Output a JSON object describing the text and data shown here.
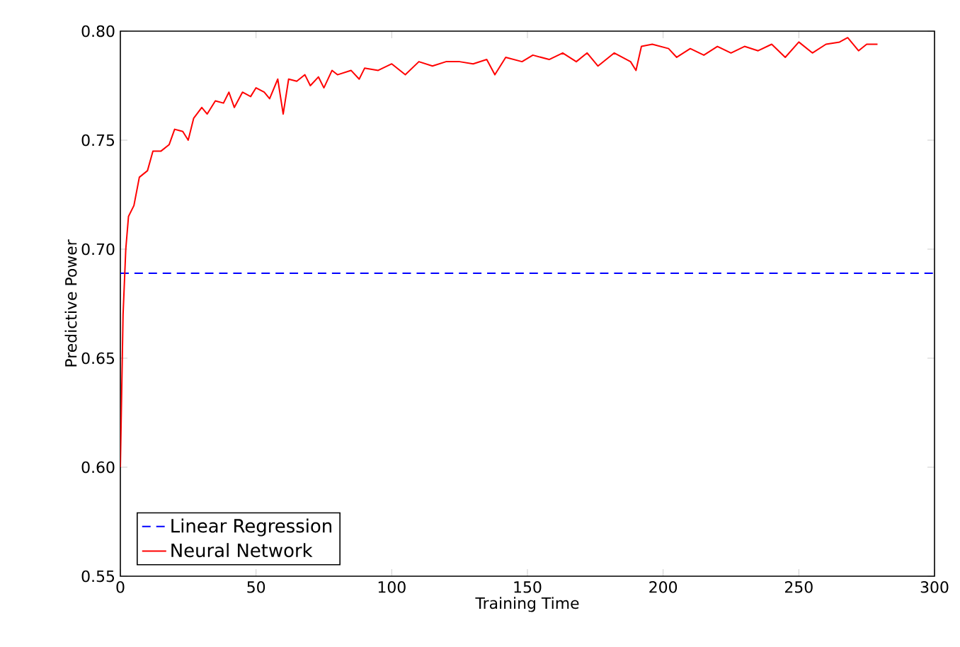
{
  "chart_data": {
    "type": "line",
    "xlabel": "Training Time",
    "ylabel": "Predictive Power",
    "xlim": [
      0,
      300
    ],
    "ylim": [
      0.55,
      0.8
    ],
    "xticks": [
      0,
      50,
      100,
      150,
      200,
      250,
      300
    ],
    "yticks": [
      "0.55",
      {
        "value": 0.6,
        "label": "0.60"
      },
      "0.65",
      {
        "value": 0.7,
        "label": "0.70"
      },
      "0.75",
      {
        "value": 0.8,
        "label": "0.80"
      }
    ],
    "grid": false,
    "legend": "bottom left",
    "series": [
      {
        "name": "Linear Regression",
        "color": "#0000ff",
        "line_style": "dashed",
        "x": [
          0,
          300
        ],
        "values": [
          0.689,
          0.689
        ]
      },
      {
        "name": "Neural Network",
        "color": "#ff0000",
        "line_style": "solid",
        "x": [
          0,
          1,
          2,
          3,
          5,
          7,
          10,
          12,
          15,
          18,
          20,
          23,
          25,
          27,
          30,
          32,
          35,
          38,
          40,
          42,
          45,
          48,
          50,
          53,
          55,
          58,
          60,
          62,
          65,
          68,
          70,
          73,
          75,
          78,
          80,
          85,
          88,
          90,
          95,
          100,
          105,
          110,
          115,
          120,
          125,
          130,
          135,
          138,
          142,
          148,
          152,
          158,
          163,
          168,
          172,
          176,
          182,
          188,
          190,
          192,
          196,
          202,
          205,
          210,
          215,
          220,
          225,
          230,
          235,
          240,
          245,
          250,
          255,
          260,
          265,
          268,
          272,
          275,
          279
        ],
        "values": [
          0.6,
          0.67,
          0.7,
          0.715,
          0.72,
          0.733,
          0.736,
          0.745,
          0.745,
          0.748,
          0.755,
          0.754,
          0.75,
          0.76,
          0.765,
          0.762,
          0.768,
          0.767,
          0.772,
          0.765,
          0.772,
          0.77,
          0.774,
          0.772,
          0.769,
          0.778,
          0.762,
          0.778,
          0.777,
          0.78,
          0.775,
          0.779,
          0.774,
          0.782,
          0.78,
          0.782,
          0.778,
          0.783,
          0.782,
          0.785,
          0.78,
          0.786,
          0.784,
          0.786,
          0.786,
          0.785,
          0.787,
          0.78,
          0.788,
          0.786,
          0.789,
          0.787,
          0.79,
          0.786,
          0.79,
          0.784,
          0.79,
          0.786,
          0.782,
          0.793,
          0.794,
          0.792,
          0.788,
          0.792,
          0.789,
          0.793,
          0.79,
          0.793,
          0.791,
          0.794,
          0.788,
          0.795,
          0.79,
          0.794,
          0.795,
          0.797,
          0.791,
          0.794,
          0.794
        ]
      }
    ]
  }
}
